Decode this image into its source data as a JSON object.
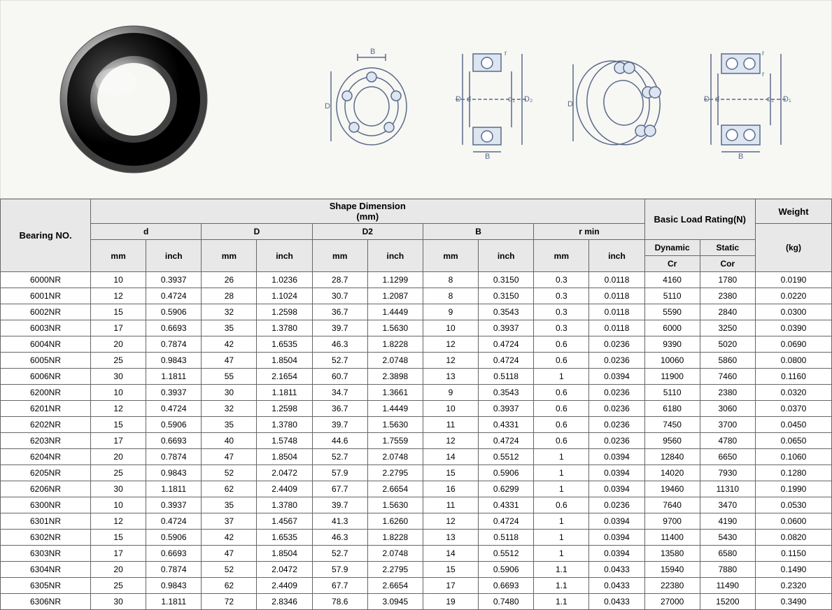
{
  "headers": {
    "bearing_no": "Bearing NO.",
    "shape_dimension": "Shape Dimension",
    "shape_unit": "(mm)",
    "basic_load": "Basic Load Rating(N)",
    "weight": "Weight",
    "weight_unit": "(kg)",
    "d": "d",
    "D": "D",
    "D2": "D2",
    "B": "B",
    "rmin": "r min",
    "dynamic": "Dynamic",
    "static": "Static",
    "mm": "mm",
    "inch": "inch",
    "Cr": "Cr",
    "Cor": "Cor"
  },
  "diagram_labels": {
    "D": "D",
    "d": "d",
    "B": "B",
    "r": "r",
    "d1": "d₁",
    "D1": "D₁",
    "D2": "D₂"
  },
  "rows": [
    {
      "no": "6000NR",
      "d_mm": "10",
      "d_in": "0.3937",
      "D_mm": "26",
      "D_in": "1.0236",
      "D2_mm": "28.7",
      "D2_in": "1.1299",
      "B_mm": "8",
      "B_in": "0.3150",
      "r_mm": "0.3",
      "r_in": "0.0118",
      "cr": "4160",
      "cor": "1780",
      "w": "0.0190"
    },
    {
      "no": "6001NR",
      "d_mm": "12",
      "d_in": "0.4724",
      "D_mm": "28",
      "D_in": "1.1024",
      "D2_mm": "30.7",
      "D2_in": "1.2087",
      "B_mm": "8",
      "B_in": "0.3150",
      "r_mm": "0.3",
      "r_in": "0.0118",
      "cr": "5110",
      "cor": "2380",
      "w": "0.0220"
    },
    {
      "no": "6002NR",
      "d_mm": "15",
      "d_in": "0.5906",
      "D_mm": "32",
      "D_in": "1.2598",
      "D2_mm": "36.7",
      "D2_in": "1.4449",
      "B_mm": "9",
      "B_in": "0.3543",
      "r_mm": "0.3",
      "r_in": "0.0118",
      "cr": "5590",
      "cor": "2840",
      "w": "0.0300"
    },
    {
      "no": "6003NR",
      "d_mm": "17",
      "d_in": "0.6693",
      "D_mm": "35",
      "D_in": "1.3780",
      "D2_mm": "39.7",
      "D2_in": "1.5630",
      "B_mm": "10",
      "B_in": "0.3937",
      "r_mm": "0.3",
      "r_in": "0.0118",
      "cr": "6000",
      "cor": "3250",
      "w": "0.0390"
    },
    {
      "no": "6004NR",
      "d_mm": "20",
      "d_in": "0.7874",
      "D_mm": "42",
      "D_in": "1.6535",
      "D2_mm": "46.3",
      "D2_in": "1.8228",
      "B_mm": "12",
      "B_in": "0.4724",
      "r_mm": "0.6",
      "r_in": "0.0236",
      "cr": "9390",
      "cor": "5020",
      "w": "0.0690"
    },
    {
      "no": "6005NR",
      "d_mm": "25",
      "d_in": "0.9843",
      "D_mm": "47",
      "D_in": "1.8504",
      "D2_mm": "52.7",
      "D2_in": "2.0748",
      "B_mm": "12",
      "B_in": "0.4724",
      "r_mm": "0.6",
      "r_in": "0.0236",
      "cr": "10060",
      "cor": "5860",
      "w": "0.0800"
    },
    {
      "no": "6006NR",
      "d_mm": "30",
      "d_in": "1.1811",
      "D_mm": "55",
      "D_in": "2.1654",
      "D2_mm": "60.7",
      "D2_in": "2.3898",
      "B_mm": "13",
      "B_in": "0.5118",
      "r_mm": "1",
      "r_in": "0.0394",
      "cr": "11900",
      "cor": "7460",
      "w": "0.1160"
    },
    {
      "no": "6200NR",
      "d_mm": "10",
      "d_in": "0.3937",
      "D_mm": "30",
      "D_in": "1.1811",
      "D2_mm": "34.7",
      "D2_in": "1.3661",
      "B_mm": "9",
      "B_in": "0.3543",
      "r_mm": "0.6",
      "r_in": "0.0236",
      "cr": "5110",
      "cor": "2380",
      "w": "0.0320"
    },
    {
      "no": "6201NR",
      "d_mm": "12",
      "d_in": "0.4724",
      "D_mm": "32",
      "D_in": "1.2598",
      "D2_mm": "36.7",
      "D2_in": "1.4449",
      "B_mm": "10",
      "B_in": "0.3937",
      "r_mm": "0.6",
      "r_in": "0.0236",
      "cr": "6180",
      "cor": "3060",
      "w": "0.0370"
    },
    {
      "no": "6202NR",
      "d_mm": "15",
      "d_in": "0.5906",
      "D_mm": "35",
      "D_in": "1.3780",
      "D2_mm": "39.7",
      "D2_in": "1.5630",
      "B_mm": "11",
      "B_in": "0.4331",
      "r_mm": "0.6",
      "r_in": "0.0236",
      "cr": "7450",
      "cor": "3700",
      "w": "0.0450"
    },
    {
      "no": "6203NR",
      "d_mm": "17",
      "d_in": "0.6693",
      "D_mm": "40",
      "D_in": "1.5748",
      "D2_mm": "44.6",
      "D2_in": "1.7559",
      "B_mm": "12",
      "B_in": "0.4724",
      "r_mm": "0.6",
      "r_in": "0.0236",
      "cr": "9560",
      "cor": "4780",
      "w": "0.0650"
    },
    {
      "no": "6204NR",
      "d_mm": "20",
      "d_in": "0.7874",
      "D_mm": "47",
      "D_in": "1.8504",
      "D2_mm": "52.7",
      "D2_in": "2.0748",
      "B_mm": "14",
      "B_in": "0.5512",
      "r_mm": "1",
      "r_in": "0.0394",
      "cr": "12840",
      "cor": "6650",
      "w": "0.1060"
    },
    {
      "no": "6205NR",
      "d_mm": "25",
      "d_in": "0.9843",
      "D_mm": "52",
      "D_in": "2.0472",
      "D2_mm": "57.9",
      "D2_in": "2.2795",
      "B_mm": "15",
      "B_in": "0.5906",
      "r_mm": "1",
      "r_in": "0.0394",
      "cr": "14020",
      "cor": "7930",
      "w": "0.1280"
    },
    {
      "no": "6206NR",
      "d_mm": "30",
      "d_in": "1.1811",
      "D_mm": "62",
      "D_in": "2.4409",
      "D2_mm": "67.7",
      "D2_in": "2.6654",
      "B_mm": "16",
      "B_in": "0.6299",
      "r_mm": "1",
      "r_in": "0.0394",
      "cr": "19460",
      "cor": "11310",
      "w": "0.1990"
    },
    {
      "no": "6300NR",
      "d_mm": "10",
      "d_in": "0.3937",
      "D_mm": "35",
      "D_in": "1.3780",
      "D2_mm": "39.7",
      "D2_in": "1.5630",
      "B_mm": "11",
      "B_in": "0.4331",
      "r_mm": "0.6",
      "r_in": "0.0236",
      "cr": "7640",
      "cor": "3470",
      "w": "0.0530"
    },
    {
      "no": "6301NR",
      "d_mm": "12",
      "d_in": "0.4724",
      "D_mm": "37",
      "D_in": "1.4567",
      "D2_mm": "41.3",
      "D2_in": "1.6260",
      "B_mm": "12",
      "B_in": "0.4724",
      "r_mm": "1",
      "r_in": "0.0394",
      "cr": "9700",
      "cor": "4190",
      "w": "0.0600"
    },
    {
      "no": "6302NR",
      "d_mm": "15",
      "d_in": "0.5906",
      "D_mm": "42",
      "D_in": "1.6535",
      "D2_mm": "46.3",
      "D2_in": "1.8228",
      "B_mm": "13",
      "B_in": "0.5118",
      "r_mm": "1",
      "r_in": "0.0394",
      "cr": "11400",
      "cor": "5430",
      "w": "0.0820"
    },
    {
      "no": "6303NR",
      "d_mm": "17",
      "d_in": "0.6693",
      "D_mm": "47",
      "D_in": "1.8504",
      "D2_mm": "52.7",
      "D2_in": "2.0748",
      "B_mm": "14",
      "B_in": "0.5512",
      "r_mm": "1",
      "r_in": "0.0394",
      "cr": "13580",
      "cor": "6580",
      "w": "0.1150"
    },
    {
      "no": "6304NR",
      "d_mm": "20",
      "d_in": "0.7874",
      "D_mm": "52",
      "D_in": "2.0472",
      "D2_mm": "57.9",
      "D2_in": "2.2795",
      "B_mm": "15",
      "B_in": "0.5906",
      "r_mm": "1.1",
      "r_in": "0.0433",
      "cr": "15940",
      "cor": "7880",
      "w": "0.1490"
    },
    {
      "no": "6305NR",
      "d_mm": "25",
      "d_in": "0.9843",
      "D_mm": "62",
      "D_in": "2.4409",
      "D2_mm": "67.7",
      "D2_in": "2.6654",
      "B_mm": "17",
      "B_in": "0.6693",
      "r_mm": "1.1",
      "r_in": "0.0433",
      "cr": "22380",
      "cor": "11490",
      "w": "0.2320"
    },
    {
      "no": "6306NR",
      "d_mm": "30",
      "d_in": "1.1811",
      "D_mm": "72",
      "D_in": "2.8346",
      "D2_mm": "78.6",
      "D2_in": "3.0945",
      "B_mm": "19",
      "B_in": "0.7480",
      "r_mm": "1.1",
      "r_in": "0.0433",
      "cr": "27000",
      "cor": "15200",
      "w": "0.3490"
    }
  ],
  "styling": {
    "header_bg": "#e8e8e8",
    "border_color": "#666666",
    "font_size": 12,
    "diagram_color": "#5a6a8a",
    "top_bg": "#f7f7f4"
  }
}
